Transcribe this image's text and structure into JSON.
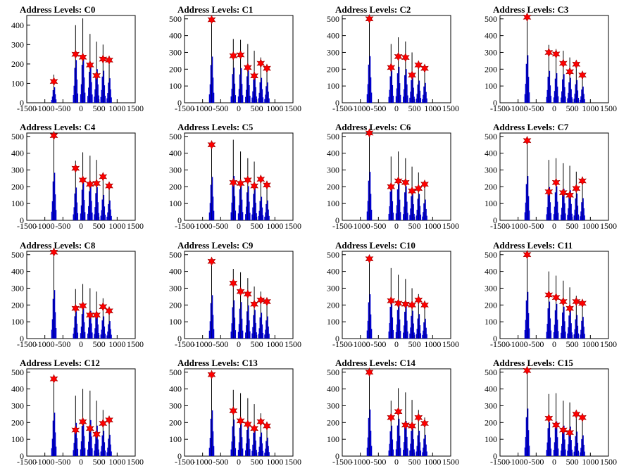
{
  "figure": {
    "panels_per_row": 4,
    "colors": {
      "histogram": "#0000cc",
      "peak_marker": "#ff0000",
      "frame": "#000000"
    }
  },
  "chart_data": [
    {
      "type": "histogram",
      "title": "Address Levels: C0",
      "xlim": [
        -1500,
        1500
      ],
      "ylim": [
        0,
        450
      ],
      "xticks": [
        -1500,
        -1000,
        -500,
        0,
        500,
        1000,
        1500
      ],
      "yticks": [
        0,
        100,
        200,
        300,
        400
      ],
      "peaks": [
        {
          "x": -750,
          "top": 145,
          "marker": 110
        },
        {
          "x": -150,
          "top": 400,
          "marker": 250
        },
        {
          "x": 50,
          "top": 435,
          "marker": 235
        },
        {
          "x": 250,
          "top": 355,
          "marker": 195
        },
        {
          "x": 430,
          "top": 315,
          "marker": 140
        },
        {
          "x": 610,
          "top": 300,
          "marker": 225
        },
        {
          "x": 780,
          "top": 230,
          "marker": 220
        }
      ]
    },
    {
      "type": "histogram",
      "title": "Address Levels: C1",
      "xlim": [
        -1500,
        1500
      ],
      "ylim": [
        0,
        520
      ],
      "xticks": [
        -1500,
        -1000,
        -500,
        0,
        500,
        1000,
        1500
      ],
      "yticks": [
        0,
        100,
        200,
        300,
        400,
        500
      ],
      "peaks": [
        {
          "x": -750,
          "top": 500,
          "marker": 495
        },
        {
          "x": -150,
          "top": 380,
          "marker": 280
        },
        {
          "x": 50,
          "top": 375,
          "marker": 285
        },
        {
          "x": 250,
          "top": 350,
          "marker": 210
        },
        {
          "x": 430,
          "top": 310,
          "marker": 160
        },
        {
          "x": 610,
          "top": 270,
          "marker": 235
        },
        {
          "x": 780,
          "top": 220,
          "marker": 205
        }
      ]
    },
    {
      "type": "histogram",
      "title": "Address Levels: C2",
      "xlim": [
        -1500,
        1500
      ],
      "ylim": [
        0,
        520
      ],
      "xticks": [
        -1500,
        -1000,
        -500,
        0,
        500,
        1000,
        1500
      ],
      "yticks": [
        0,
        100,
        200,
        300,
        400,
        500
      ],
      "peaks": [
        {
          "x": -750,
          "top": 505,
          "marker": 500
        },
        {
          "x": -150,
          "top": 350,
          "marker": 210
        },
        {
          "x": 50,
          "top": 390,
          "marker": 275
        },
        {
          "x": 250,
          "top": 365,
          "marker": 270
        },
        {
          "x": 430,
          "top": 300,
          "marker": 165
        },
        {
          "x": 610,
          "top": 240,
          "marker": 225
        },
        {
          "x": 780,
          "top": 215,
          "marker": 205
        }
      ]
    },
    {
      "type": "histogram",
      "title": "Address Levels: C3",
      "xlim": [
        -1500,
        1500
      ],
      "ylim": [
        0,
        520
      ],
      "xticks": [
        -1500,
        -1000,
        -500,
        0,
        500,
        1000,
        1500
      ],
      "yticks": [
        0,
        100,
        200,
        300,
        400,
        500
      ],
      "peaks": [
        {
          "x": -750,
          "top": 515,
          "marker": 510
        },
        {
          "x": -150,
          "top": 345,
          "marker": 300
        },
        {
          "x": 50,
          "top": 320,
          "marker": 290
        },
        {
          "x": 250,
          "top": 310,
          "marker": 235
        },
        {
          "x": 430,
          "top": 270,
          "marker": 185
        },
        {
          "x": 610,
          "top": 245,
          "marker": 230
        },
        {
          "x": 780,
          "top": 175,
          "marker": 165
        }
      ]
    },
    {
      "type": "histogram",
      "title": "Address Levels: C4",
      "xlim": [
        -1500,
        1500
      ],
      "ylim": [
        0,
        520
      ],
      "xticks": [
        -1500,
        -1000,
        -500,
        0,
        500,
        1000,
        1500
      ],
      "yticks": [
        0,
        100,
        200,
        300,
        400,
        500
      ],
      "peaks": [
        {
          "x": -750,
          "top": 515,
          "marker": 505
        },
        {
          "x": -150,
          "top": 355,
          "marker": 310
        },
        {
          "x": 50,
          "top": 405,
          "marker": 240
        },
        {
          "x": 250,
          "top": 385,
          "marker": 215
        },
        {
          "x": 430,
          "top": 360,
          "marker": 220
        },
        {
          "x": 610,
          "top": 275,
          "marker": 260
        },
        {
          "x": 780,
          "top": 215,
          "marker": 205
        }
      ]
    },
    {
      "type": "histogram",
      "title": "Address Levels: C5",
      "xlim": [
        -1500,
        1500
      ],
      "ylim": [
        0,
        520
      ],
      "xticks": [
        -1500,
        -1000,
        -500,
        0,
        500,
        1000,
        1500
      ],
      "yticks": [
        0,
        100,
        200,
        300,
        400,
        500
      ],
      "peaks": [
        {
          "x": -750,
          "top": 470,
          "marker": 450
        },
        {
          "x": -150,
          "top": 480,
          "marker": 225
        },
        {
          "x": 50,
          "top": 410,
          "marker": 220
        },
        {
          "x": 250,
          "top": 370,
          "marker": 240
        },
        {
          "x": 430,
          "top": 350,
          "marker": 205
        },
        {
          "x": 610,
          "top": 255,
          "marker": 245
        },
        {
          "x": 780,
          "top": 215,
          "marker": 210
        }
      ]
    },
    {
      "type": "histogram",
      "title": "Address Levels: C6",
      "xlim": [
        -1500,
        1500
      ],
      "ylim": [
        0,
        520
      ],
      "xticks": [
        -1500,
        -1000,
        -500,
        0,
        500,
        1000,
        1500
      ],
      "yticks": [
        0,
        100,
        200,
        300,
        400,
        500
      ],
      "peaks": [
        {
          "x": -750,
          "top": 525,
          "marker": 520
        },
        {
          "x": -150,
          "top": 380,
          "marker": 200
        },
        {
          "x": 50,
          "top": 410,
          "marker": 235
        },
        {
          "x": 250,
          "top": 370,
          "marker": 225
        },
        {
          "x": 430,
          "top": 320,
          "marker": 175
        },
        {
          "x": 610,
          "top": 285,
          "marker": 190
        },
        {
          "x": 780,
          "top": 225,
          "marker": 215
        }
      ]
    },
    {
      "type": "histogram",
      "title": "Address Levels: C7",
      "xlim": [
        -1500,
        1500
      ],
      "ylim": [
        0,
        520
      ],
      "xticks": [
        -1500,
        -1000,
        -500,
        0,
        500,
        1000,
        1500
      ],
      "yticks": [
        0,
        100,
        200,
        300,
        400,
        500
      ],
      "peaks": [
        {
          "x": -750,
          "top": 480,
          "marker": 475
        },
        {
          "x": -150,
          "top": 360,
          "marker": 170
        },
        {
          "x": 50,
          "top": 370,
          "marker": 225
        },
        {
          "x": 250,
          "top": 340,
          "marker": 165
        },
        {
          "x": 430,
          "top": 325,
          "marker": 150
        },
        {
          "x": 610,
          "top": 290,
          "marker": 190
        },
        {
          "x": 780,
          "top": 240,
          "marker": 235
        }
      ]
    },
    {
      "type": "histogram",
      "title": "Address Levels: C8",
      "xlim": [
        -1500,
        1500
      ],
      "ylim": [
        0,
        520
      ],
      "xticks": [
        -1500,
        -1000,
        -500,
        0,
        500,
        1000,
        1500
      ],
      "yticks": [
        0,
        100,
        200,
        300,
        400,
        500
      ],
      "peaks": [
        {
          "x": -750,
          "top": 525,
          "marker": 515
        },
        {
          "x": -150,
          "top": 295,
          "marker": 180
        },
        {
          "x": 50,
          "top": 325,
          "marker": 195
        },
        {
          "x": 250,
          "top": 300,
          "marker": 140
        },
        {
          "x": 430,
          "top": 280,
          "marker": 140
        },
        {
          "x": 610,
          "top": 240,
          "marker": 190
        },
        {
          "x": 780,
          "top": 190,
          "marker": 165
        }
      ]
    },
    {
      "type": "histogram",
      "title": "Address Levels: C9",
      "xlim": [
        -1500,
        1500
      ],
      "ylim": [
        0,
        520
      ],
      "xticks": [
        -1500,
        -1000,
        -500,
        0,
        500,
        1000,
        1500
      ],
      "yticks": [
        0,
        100,
        200,
        300,
        400,
        500
      ],
      "peaks": [
        {
          "x": -750,
          "top": 470,
          "marker": 460
        },
        {
          "x": -150,
          "top": 415,
          "marker": 330
        },
        {
          "x": 50,
          "top": 395,
          "marker": 280
        },
        {
          "x": 250,
          "top": 360,
          "marker": 265
        },
        {
          "x": 430,
          "top": 310,
          "marker": 205
        },
        {
          "x": 610,
          "top": 280,
          "marker": 230
        },
        {
          "x": 780,
          "top": 240,
          "marker": 220
        }
      ]
    },
    {
      "type": "histogram",
      "title": "Address Levels: C10",
      "xlim": [
        -1500,
        1500
      ],
      "ylim": [
        0,
        520
      ],
      "xticks": [
        -1500,
        -1000,
        -500,
        0,
        500,
        1000,
        1500
      ],
      "yticks": [
        0,
        100,
        200,
        300,
        400,
        500
      ],
      "peaks": [
        {
          "x": -750,
          "top": 480,
          "marker": 475
        },
        {
          "x": -150,
          "top": 420,
          "marker": 225
        },
        {
          "x": 50,
          "top": 380,
          "marker": 210
        },
        {
          "x": 250,
          "top": 355,
          "marker": 205
        },
        {
          "x": 430,
          "top": 300,
          "marker": 200
        },
        {
          "x": 610,
          "top": 265,
          "marker": 230
        },
        {
          "x": 780,
          "top": 215,
          "marker": 200
        }
      ]
    },
    {
      "type": "histogram",
      "title": "Address Levels: C11",
      "xlim": [
        -1500,
        1500
      ],
      "ylim": [
        0,
        520
      ],
      "xticks": [
        -1500,
        -1000,
        -500,
        0,
        500,
        1000,
        1500
      ],
      "yticks": [
        0,
        100,
        200,
        300,
        400,
        500
      ],
      "peaks": [
        {
          "x": -750,
          "top": 505,
          "marker": 500
        },
        {
          "x": -150,
          "top": 400,
          "marker": 260
        },
        {
          "x": 50,
          "top": 375,
          "marker": 245
        },
        {
          "x": 250,
          "top": 345,
          "marker": 220
        },
        {
          "x": 430,
          "top": 305,
          "marker": 180
        },
        {
          "x": 610,
          "top": 255,
          "marker": 220
        },
        {
          "x": 780,
          "top": 235,
          "marker": 210
        }
      ]
    },
    {
      "type": "histogram",
      "title": "Address Levels: C12",
      "xlim": [
        -1500,
        1500
      ],
      "ylim": [
        0,
        520
      ],
      "xticks": [
        -1500,
        -1000,
        -500,
        0,
        500,
        1000,
        1500
      ],
      "yticks": [
        0,
        100,
        200,
        300,
        400,
        500
      ],
      "peaks": [
        {
          "x": -750,
          "top": 470,
          "marker": 460
        },
        {
          "x": -150,
          "top": 360,
          "marker": 155
        },
        {
          "x": 50,
          "top": 400,
          "marker": 205
        },
        {
          "x": 250,
          "top": 390,
          "marker": 165
        },
        {
          "x": 430,
          "top": 330,
          "marker": 130
        },
        {
          "x": 610,
          "top": 275,
          "marker": 195
        },
        {
          "x": 780,
          "top": 230,
          "marker": 215
        }
      ]
    },
    {
      "type": "histogram",
      "title": "Address Levels: C13",
      "xlim": [
        -1500,
        1500
      ],
      "ylim": [
        0,
        520
      ],
      "xticks": [
        -1500,
        -1000,
        -500,
        0,
        500,
        1000,
        1500
      ],
      "yticks": [
        0,
        100,
        200,
        300,
        400,
        500
      ],
      "peaks": [
        {
          "x": -750,
          "top": 495,
          "marker": 485
        },
        {
          "x": -150,
          "top": 395,
          "marker": 270
        },
        {
          "x": 50,
          "top": 375,
          "marker": 210
        },
        {
          "x": 250,
          "top": 345,
          "marker": 190
        },
        {
          "x": 430,
          "top": 310,
          "marker": 165
        },
        {
          "x": 610,
          "top": 255,
          "marker": 205
        },
        {
          "x": 780,
          "top": 200,
          "marker": 180
        }
      ]
    },
    {
      "type": "histogram",
      "title": "Address Levels: C14",
      "xlim": [
        -1500,
        1500
      ],
      "ylim": [
        0,
        520
      ],
      "xticks": [
        -1500,
        -1000,
        -500,
        0,
        500,
        1000,
        1500
      ],
      "yticks": [
        0,
        100,
        200,
        300,
        400,
        500
      ],
      "peaks": [
        {
          "x": -750,
          "top": 505,
          "marker": 500
        },
        {
          "x": -150,
          "top": 330,
          "marker": 230
        },
        {
          "x": 50,
          "top": 405,
          "marker": 265
        },
        {
          "x": 250,
          "top": 380,
          "marker": 185
        },
        {
          "x": 430,
          "top": 335,
          "marker": 180
        },
        {
          "x": 610,
          "top": 275,
          "marker": 230
        },
        {
          "x": 780,
          "top": 230,
          "marker": 195
        }
      ]
    },
    {
      "type": "histogram",
      "title": "Address Levels: C15",
      "xlim": [
        -1500,
        1500
      ],
      "ylim": [
        0,
        520
      ],
      "xticks": [
        -1500,
        -1000,
        -500,
        0,
        500,
        1000,
        1500
      ],
      "yticks": [
        0,
        100,
        200,
        300,
        400,
        500
      ],
      "peaks": [
        {
          "x": -750,
          "top": 515,
          "marker": 510
        },
        {
          "x": -150,
          "top": 370,
          "marker": 225
        },
        {
          "x": 50,
          "top": 375,
          "marker": 185
        },
        {
          "x": 250,
          "top": 330,
          "marker": 155
        },
        {
          "x": 430,
          "top": 320,
          "marker": 140
        },
        {
          "x": 610,
          "top": 265,
          "marker": 250
        },
        {
          "x": 780,
          "top": 225,
          "marker": 230
        }
      ]
    }
  ]
}
